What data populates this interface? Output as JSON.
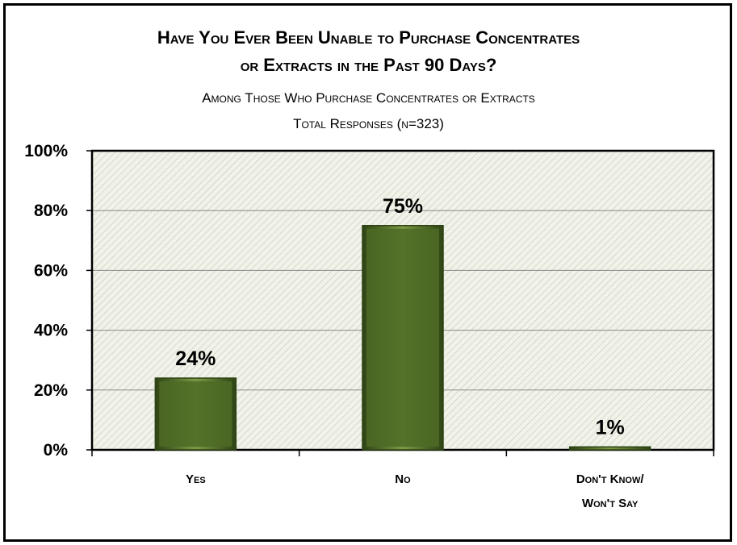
{
  "chart_data": {
    "type": "bar",
    "title_line1": "Have You Ever Been Unable to Purchase Concentrates",
    "title_line2": "or Extracts in the Past 90 Days?",
    "subtitle_line1": "Among Those Who Purchase Concentrates or Extracts",
    "subtitle_line2": "Total Responses (n=323)",
    "categories": [
      [
        "Yes"
      ],
      [
        "No"
      ],
      [
        "Don't Know/",
        "Won't Say"
      ]
    ],
    "values": [
      24,
      75,
      1
    ],
    "data_labels": [
      "24%",
      "75%",
      "1%"
    ],
    "yticks": [
      "0%",
      "20%",
      "40%",
      "60%",
      "80%",
      "100%"
    ],
    "ylim": [
      0,
      100
    ],
    "grid": true,
    "legend": "none",
    "colors": {
      "bar": "#4e6b24",
      "bar_light": "#7c9a45",
      "bar_dark": "#2e4314",
      "plot_bg": "#f1f3ea",
      "hatch": "#c9cfb9",
      "grid": "#8a8a8a"
    }
  }
}
